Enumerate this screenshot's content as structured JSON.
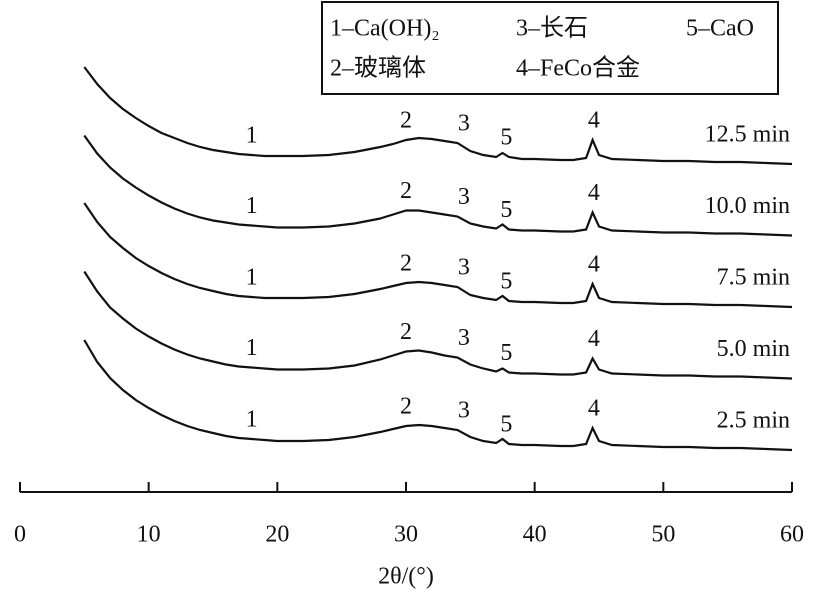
{
  "chart_data": {
    "type": "line",
    "xlabel": "2θ/(°)",
    "legend_entries": [
      "1–Ca(OH)₂",
      "3–长石",
      "5–CaO",
      "2–玻璃体",
      "4–FeCo合金"
    ],
    "peaks": [
      {
        "label": "1",
        "x": 18
      },
      {
        "label": "2",
        "x": 30
      },
      {
        "label": "3",
        "x": 34.5
      },
      {
        "label": "5",
        "x": 37.8
      },
      {
        "label": "4",
        "x": 44.6
      }
    ],
    "xlim": [
      0,
      60
    ],
    "xticks": [
      0,
      10,
      20,
      30,
      40,
      50,
      60
    ],
    "x": [
      5,
      6,
      7,
      8,
      9,
      10,
      11,
      12,
      13,
      14,
      15,
      16,
      17,
      18,
      19,
      20,
      22,
      24,
      26,
      28,
      29,
      30,
      31,
      32,
      33,
      34,
      35,
      36,
      37,
      37.5,
      38,
      39,
      40,
      42,
      43,
      44,
      44.5,
      45,
      46,
      48,
      50,
      52,
      54,
      56,
      58,
      60
    ],
    "series": [
      {
        "name": "12.5 min",
        "color": "#111111",
        "values": [
          97,
          80,
          66,
          55,
          46,
          38,
          31,
          26,
          21,
          17,
          14,
          12,
          10,
          9,
          8,
          8,
          8,
          9,
          12,
          17,
          20,
          24,
          26,
          25,
          23,
          21,
          13,
          9,
          7,
          11,
          7,
          5,
          5,
          4,
          4,
          6,
          24,
          9,
          5,
          4,
          3,
          3,
          2,
          2,
          1,
          0
        ]
      },
      {
        "name": "10.0 min",
        "color": "#111111",
        "values": [
          100,
          82,
          68,
          57,
          48,
          40,
          33,
          27,
          22,
          18,
          15,
          13,
          11,
          10,
          9,
          8,
          8,
          9,
          12,
          17,
          21,
          25,
          25,
          23,
          21,
          19,
          12,
          9,
          7,
          11,
          6,
          5,
          5,
          4,
          4,
          6,
          23,
          9,
          5,
          4,
          3,
          3,
          2,
          2,
          1,
          0
        ]
      },
      {
        "name": "7.5 min",
        "color": "#111111",
        "values": [
          104,
          85,
          70,
          59,
          49,
          41,
          34,
          28,
          23,
          19,
          16,
          13,
          11,
          10,
          9,
          9,
          9,
          10,
          13,
          18,
          21,
          24,
          25,
          24,
          22,
          20,
          12,
          9,
          7,
          11,
          6,
          5,
          5,
          4,
          4,
          6,
          23,
          9,
          5,
          4,
          3,
          3,
          2,
          2,
          1,
          0
        ]
      },
      {
        "name": "5.0 min",
        "color": "#111111",
        "values": [
          107,
          87,
          71,
          60,
          50,
          42,
          35,
          29,
          24,
          20,
          17,
          14,
          12,
          11,
          10,
          9,
          9,
          10,
          13,
          19,
          23,
          27,
          28,
          26,
          23,
          21,
          14,
          10,
          7,
          10,
          6,
          5,
          5,
          4,
          4,
          6,
          20,
          9,
          5,
          4,
          3,
          3,
          2,
          2,
          1,
          0
        ]
      },
      {
        "name": "2.5 min",
        "color": "#111111",
        "values": [
          110,
          88,
          72,
          60,
          50,
          42,
          35,
          29,
          24,
          20,
          17,
          14,
          12,
          11,
          10,
          9,
          9,
          10,
          13,
          18,
          21,
          24,
          25,
          24,
          22,
          20,
          13,
          9,
          7,
          11,
          6,
          5,
          5,
          4,
          4,
          6,
          22,
          9,
          5,
          4,
          3,
          3,
          2,
          2,
          1,
          0
        ]
      }
    ]
  }
}
